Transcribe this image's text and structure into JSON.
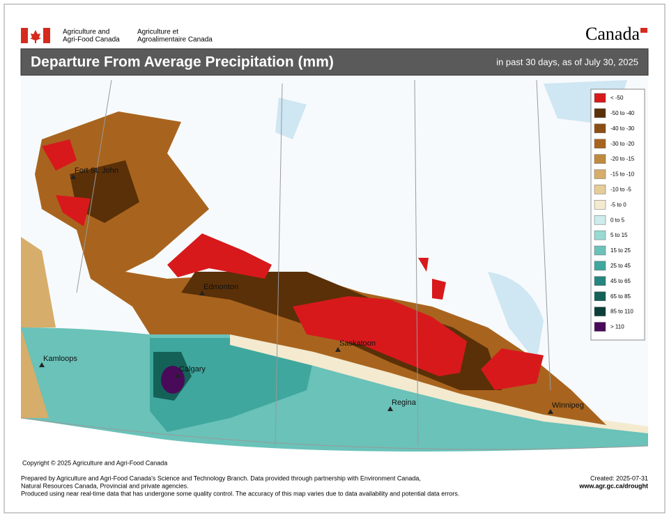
{
  "header": {
    "agency_en": [
      "Agriculture and",
      "Agri-Food Canada"
    ],
    "agency_fr": [
      "Agriculture et",
      "Agroalimentaire Canada"
    ],
    "wordmark": "Canada"
  },
  "title": "Departure From Average Precipitation (mm)",
  "subtitle": "in past 30 days, as of July 30, 2025",
  "legend": [
    {
      "label": "< -50",
      "color": "#d7191c"
    },
    {
      "label": "-50 to -40",
      "color": "#5a3008"
    },
    {
      "label": "-40 to -30",
      "color": "#8b4f14"
    },
    {
      "label": "-30 to -20",
      "color": "#a8641e"
    },
    {
      "label": "-20 to -15",
      "color": "#c08a3e"
    },
    {
      "label": "-15 to -10",
      "color": "#d6ad6a"
    },
    {
      "label": "-10 to -5",
      "color": "#e6cc96"
    },
    {
      "label": "-5 to 0",
      "color": "#f3ead0"
    },
    {
      "label": "0 to 5",
      "color": "#cdeceb"
    },
    {
      "label": "5 to 15",
      "color": "#97d9d3"
    },
    {
      "label": "15 to 25",
      "color": "#6ac2b9"
    },
    {
      "label": "25 to 45",
      "color": "#3fa79e"
    },
    {
      "label": "45 to 65",
      "color": "#23867f"
    },
    {
      "label": "65 to 85",
      "color": "#146158"
    },
    {
      "label": "85 to 110",
      "color": "#0c3f38"
    },
    {
      "label": "> 110",
      "color": "#4a0a5a"
    }
  ],
  "cities": [
    "Fort St. John",
    "Edmonton",
    "Kamloops",
    "Calgary",
    "Saskatoon",
    "Regina",
    "Winnipeg"
  ],
  "copyright": "Copyright © 2025 Agriculture and Agri-Food Canada",
  "footer": {
    "notes": [
      "Prepared by Agriculture and Agri-Food Canada's Science and Technology Branch. Data provided through partnership with Environment Canada,",
      "Natural Resources Canada, Provincial and private agencies.",
      "Produced using near real-time data that has undergone some quality control. The accuracy of this map varies due to data availability and potential data errors."
    ],
    "created": "Created: 2025-07-31",
    "url": "www.agr.gc.ca/drought"
  }
}
